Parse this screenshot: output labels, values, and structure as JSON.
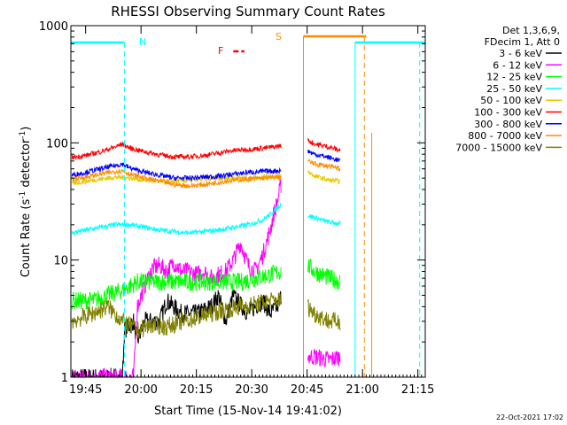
{
  "chart_data": {
    "type": "line",
    "title": "RHESSI Observing Summary Count Rates",
    "xlabel": "Start Time (15-Nov-14 19:41:02)",
    "ylabel_main": "Count Rate (s",
    "ylabel_sup1": "-1",
    "ylabel_mid": " detector",
    "ylabel_sup2": "-1",
    "ylabel_end": ")",
    "x_range_min": [
      0,
      96
    ],
    "y_log": true,
    "ylim": [
      1,
      1000
    ],
    "x_ticks": [
      {
        "label": "19:45",
        "min": 4
      },
      {
        "label": "20:00",
        "min": 19
      },
      {
        "label": "20:15",
        "min": 34
      },
      {
        "label": "20:30",
        "min": 49
      },
      {
        "label": "20:45",
        "min": 64
      },
      {
        "label": "21:00",
        "min": 79
      },
      {
        "label": "21:15",
        "min": 94
      }
    ],
    "y_ticks": [
      {
        "label": "1",
        "v": 1
      },
      {
        "label": "10",
        "v": 10
      },
      {
        "label": "100",
        "v": 100
      },
      {
        "label": "1000",
        "v": 1000
      }
    ],
    "legend_header": [
      "Det 1,3,6,9,",
      "FDecim 1, Att 0"
    ],
    "series": [
      {
        "name": "3 - 6 keV",
        "color": "#000000",
        "seg1": [
          [
            0.3,
            1
          ],
          [
            14,
            1
          ],
          [
            14.5,
            2.5
          ],
          [
            17,
            3
          ],
          [
            18,
            2
          ],
          [
            20,
            3
          ],
          [
            24,
            3
          ],
          [
            26,
            4.5
          ],
          [
            30,
            3.5
          ],
          [
            34,
            3.5
          ],
          [
            38,
            4
          ],
          [
            40,
            5
          ],
          [
            42,
            3
          ],
          [
            44,
            5
          ],
          [
            45,
            4.5
          ],
          [
            48,
            3.5
          ],
          [
            50,
            4
          ],
          [
            52,
            4.5
          ],
          [
            54,
            3.5
          ],
          [
            56,
            4
          ],
          [
            57,
            5
          ]
        ],
        "seg2": []
      },
      {
        "name": "6 - 12 keV",
        "color": "#ff00ff",
        "seg1": [
          [
            0.3,
            1
          ],
          [
            17,
            1
          ],
          [
            18,
            4
          ],
          [
            20,
            6
          ],
          [
            22,
            8.5
          ],
          [
            24,
            9
          ],
          [
            26,
            8
          ],
          [
            28,
            9.5
          ],
          [
            30,
            8
          ],
          [
            32,
            8
          ],
          [
            34,
            7.5
          ],
          [
            36,
            8
          ],
          [
            38,
            7
          ],
          [
            40,
            7.5
          ],
          [
            42,
            8
          ],
          [
            44,
            10
          ],
          [
            46,
            14
          ],
          [
            48,
            9
          ],
          [
            50,
            8
          ],
          [
            52,
            11
          ],
          [
            54,
            18
          ],
          [
            55,
            25
          ],
          [
            56,
            32
          ],
          [
            57,
            45
          ]
        ],
        "seg2": [
          [
            64.2,
            1.5
          ],
          [
            66,
            1.5
          ],
          [
            70,
            1.4
          ],
          [
            73,
            1.5
          ]
        ]
      },
      {
        "name": "12 - 25 keV",
        "color": "#00ff00",
        "seg1": [
          [
            0.3,
            4.5
          ],
          [
            6,
            4.5
          ],
          [
            10,
            5
          ],
          [
            14,
            5.5
          ],
          [
            18,
            6.5
          ],
          [
            22,
            6.5
          ],
          [
            26,
            6.5
          ],
          [
            30,
            6.5
          ],
          [
            34,
            6.5
          ],
          [
            38,
            6.5
          ],
          [
            42,
            6.5
          ],
          [
            46,
            6.5
          ],
          [
            50,
            7
          ],
          [
            54,
            7.5
          ],
          [
            57,
            8
          ]
        ],
        "seg2": [
          [
            64.2,
            9
          ],
          [
            66,
            8
          ],
          [
            70,
            7
          ],
          [
            73,
            6.5
          ]
        ]
      },
      {
        "name": "25 - 50 keV",
        "color": "#00ffff",
        "seg1": [
          [
            0.3,
            17
          ],
          [
            4,
            18
          ],
          [
            8,
            19
          ],
          [
            12,
            20
          ],
          [
            16,
            20
          ],
          [
            20,
            19
          ],
          [
            24,
            18
          ],
          [
            28,
            17.5
          ],
          [
            32,
            17
          ],
          [
            36,
            17.5
          ],
          [
            40,
            18
          ],
          [
            44,
            19
          ],
          [
            48,
            20
          ],
          [
            52,
            22
          ],
          [
            55,
            26
          ],
          [
            57,
            30
          ]
        ],
        "seg2": [
          [
            64.2,
            24
          ],
          [
            66,
            23
          ],
          [
            70,
            21
          ],
          [
            73,
            20.5
          ]
        ]
      },
      {
        "name": "50 - 100 keV",
        "color": "#e6c800",
        "seg1": [
          [
            0.3,
            45
          ],
          [
            4,
            47
          ],
          [
            8,
            49
          ],
          [
            12,
            51
          ],
          [
            16,
            50
          ],
          [
            20,
            48
          ],
          [
            24,
            47
          ],
          [
            28,
            47
          ],
          [
            32,
            48
          ],
          [
            36,
            49
          ],
          [
            40,
            50
          ],
          [
            44,
            50
          ],
          [
            48,
            50
          ],
          [
            52,
            51
          ],
          [
            57,
            52
          ]
        ],
        "seg2": [
          [
            64.2,
            57
          ],
          [
            66,
            52
          ],
          [
            70,
            48
          ],
          [
            73,
            47
          ]
        ]
      },
      {
        "name": "100 - 300 keV",
        "color": "#ff0000",
        "seg1": [
          [
            0.3,
            75
          ],
          [
            4,
            78
          ],
          [
            8,
            84
          ],
          [
            12,
            92
          ],
          [
            14,
            98
          ],
          [
            16,
            90
          ],
          [
            20,
            84
          ],
          [
            24,
            79
          ],
          [
            28,
            76
          ],
          [
            32,
            76
          ],
          [
            36,
            78
          ],
          [
            40,
            82
          ],
          [
            44,
            86
          ],
          [
            48,
            88
          ],
          [
            52,
            90
          ],
          [
            55,
            92
          ],
          [
            57,
            95
          ]
        ],
        "seg2": [
          [
            64.2,
            105
          ],
          [
            66,
            98
          ],
          [
            70,
            92
          ],
          [
            73,
            86
          ]
        ]
      },
      {
        "name": "300 - 800 keV",
        "color": "#0000ff",
        "seg1": [
          [
            0.3,
            53
          ],
          [
            4,
            56
          ],
          [
            8,
            60
          ],
          [
            12,
            64
          ],
          [
            14,
            66
          ],
          [
            16,
            61
          ],
          [
            20,
            56
          ],
          [
            24,
            53
          ],
          [
            28,
            50
          ],
          [
            32,
            50
          ],
          [
            36,
            51
          ],
          [
            40,
            52
          ],
          [
            44,
            54
          ],
          [
            48,
            56
          ],
          [
            52,
            57
          ],
          [
            57,
            58
          ]
        ],
        "seg2": [
          [
            64.2,
            85
          ],
          [
            66,
            80
          ],
          [
            70,
            75
          ],
          [
            73,
            70
          ]
        ]
      },
      {
        "name": "800 - 7000 keV",
        "color": "#ff8c00",
        "seg1": [
          [
            0.3,
            49
          ],
          [
            4,
            51
          ],
          [
            8,
            54
          ],
          [
            12,
            57
          ],
          [
            14,
            58
          ],
          [
            16,
            54
          ],
          [
            20,
            50
          ],
          [
            24,
            47
          ],
          [
            28,
            44
          ],
          [
            32,
            43
          ],
          [
            36,
            44
          ],
          [
            40,
            46
          ],
          [
            44,
            48
          ],
          [
            48,
            49
          ],
          [
            52,
            50
          ],
          [
            57,
            51
          ]
        ],
        "seg2": [
          [
            64.2,
            70
          ],
          [
            66,
            66
          ],
          [
            70,
            63
          ],
          [
            73,
            60
          ]
        ]
      },
      {
        "name": "7000 - 15000 keV",
        "color": "#808000",
        "seg1": [
          [
            0.3,
            3
          ],
          [
            6,
            3.5
          ],
          [
            10,
            4
          ],
          [
            14,
            3
          ],
          [
            18,
            2.5
          ],
          [
            22,
            2.8
          ],
          [
            26,
            2.7
          ],
          [
            30,
            3
          ],
          [
            34,
            3.2
          ],
          [
            38,
            3.5
          ],
          [
            42,
            3.8
          ],
          [
            46,
            4
          ],
          [
            50,
            4.2
          ],
          [
            54,
            4.5
          ],
          [
            57,
            4.5
          ]
        ],
        "seg2": [
          [
            64.2,
            4
          ],
          [
            66,
            3.5
          ],
          [
            70,
            3
          ],
          [
            73,
            3
          ]
        ]
      }
    ],
    "annotations": {
      "n_label": "N",
      "s_label": "S",
      "f_label": "F",
      "night_segments": [
        {
          "start": 0,
          "end": 14.5
        },
        {
          "start": 77,
          "end": 96
        }
      ],
      "saa_segment": {
        "start": 63,
        "end": 80
      },
      "flare_segment": {
        "start": 44,
        "end": 47
      }
    },
    "footer_date": "22-Oct-2021 17:02"
  }
}
